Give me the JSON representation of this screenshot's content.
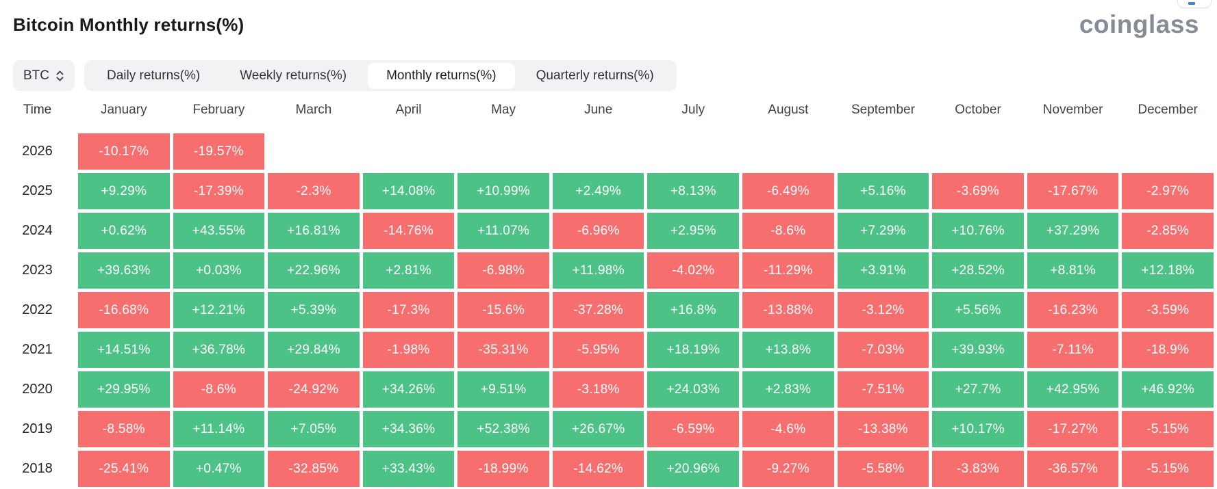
{
  "header": {
    "title": "Bitcoin Monthly returns(%)",
    "logo_text": "coinglass"
  },
  "controls": {
    "symbol_select": {
      "value": "BTC"
    },
    "tabs": [
      {
        "label": "Daily returns(%)",
        "active": false
      },
      {
        "label": "Weekly returns(%)",
        "active": false
      },
      {
        "label": "Monthly returns(%)",
        "active": true
      },
      {
        "label": "Quarterly returns(%)",
        "active": false
      }
    ]
  },
  "colors": {
    "positive": "#4dc287",
    "negative": "#f76e6e",
    "popover_accent": "#4a7de0"
  },
  "chart_data": {
    "type": "heatmap",
    "title": "Bitcoin Monthly returns(%)",
    "unit": "percent",
    "value_format": "signed_percent_trimmed",
    "row_header": "Time",
    "columns": [
      "January",
      "February",
      "March",
      "April",
      "May",
      "June",
      "July",
      "August",
      "September",
      "October",
      "November",
      "December"
    ],
    "rows": [
      {
        "year": "2026",
        "values": [
          -10.17,
          -19.57,
          null,
          null,
          null,
          null,
          null,
          null,
          null,
          null,
          null,
          null
        ]
      },
      {
        "year": "2025",
        "values": [
          9.29,
          -17.39,
          -2.3,
          14.08,
          10.99,
          2.49,
          8.13,
          -6.49,
          5.16,
          -3.69,
          -17.67,
          -2.97
        ]
      },
      {
        "year": "2024",
        "values": [
          0.62,
          43.55,
          16.81,
          -14.76,
          11.07,
          -6.96,
          2.95,
          -8.6,
          7.29,
          10.76,
          37.29,
          -2.85
        ]
      },
      {
        "year": "2023",
        "values": [
          39.63,
          0.03,
          22.96,
          2.81,
          -6.98,
          11.98,
          -4.02,
          -11.29,
          3.91,
          28.52,
          8.81,
          12.18
        ]
      },
      {
        "year": "2022",
        "values": [
          -16.68,
          12.21,
          5.39,
          -17.3,
          -15.6,
          -37.28,
          16.8,
          -13.88,
          -3.12,
          5.56,
          -16.23,
          -3.59
        ]
      },
      {
        "year": "2021",
        "values": [
          14.51,
          36.78,
          29.84,
          -1.98,
          -35.31,
          -5.95,
          18.19,
          13.8,
          -7.03,
          39.93,
          -7.11,
          -18.9
        ]
      },
      {
        "year": "2020",
        "values": [
          29.95,
          -8.6,
          -24.92,
          34.26,
          9.51,
          -3.18,
          24.03,
          2.83,
          -7.51,
          27.7,
          42.95,
          46.92
        ]
      },
      {
        "year": "2019",
        "values": [
          -8.58,
          11.14,
          7.05,
          34.36,
          52.38,
          26.67,
          -6.59,
          -4.6,
          -13.38,
          10.17,
          -17.27,
          -5.15
        ]
      },
      {
        "year": "2018",
        "values": [
          -25.41,
          0.47,
          -32.85,
          33.43,
          -18.99,
          -14.62,
          20.96,
          -9.27,
          -5.58,
          -3.83,
          -36.57,
          -5.15
        ]
      }
    ],
    "positive_color": "#4dc287",
    "negative_color": "#f76e6e",
    "legend": "green = positive monthly return, red = negative monthly return"
  }
}
